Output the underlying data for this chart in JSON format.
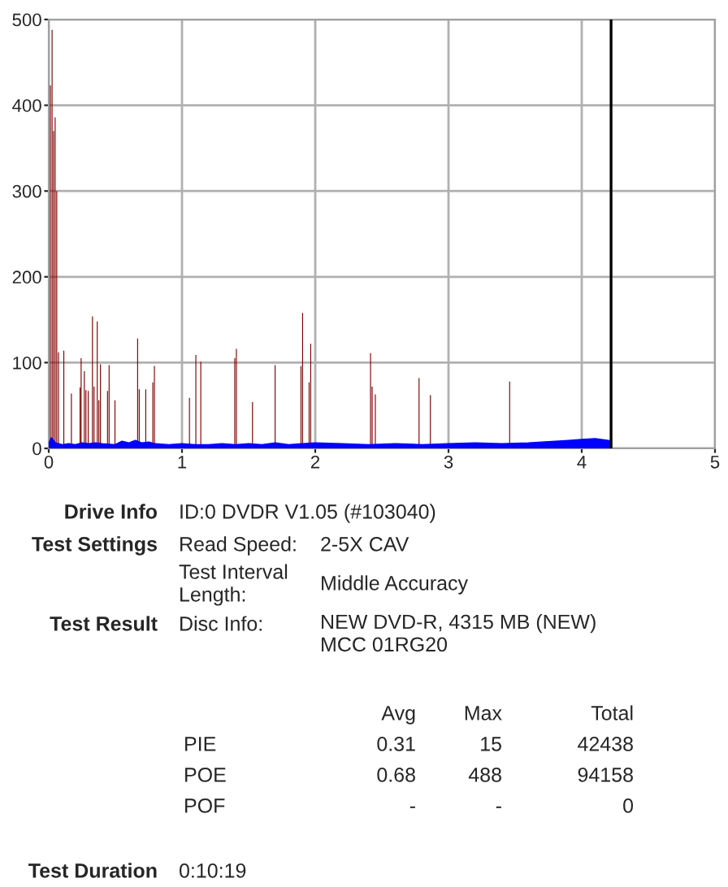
{
  "chart_data": {
    "type": "bar",
    "series": [
      {
        "color": "#800000",
        "x": [
          0.012,
          0.025,
          0.036,
          0.048,
          0.06,
          0.073,
          0.113,
          0.17,
          0.235,
          0.243,
          0.267,
          0.279,
          0.296,
          0.328,
          0.34,
          0.364,
          0.376,
          0.388,
          0.441,
          0.453,
          0.497,
          0.667,
          0.679,
          0.728,
          0.781,
          0.793,
          1.056,
          1.104,
          1.141,
          1.396,
          1.408,
          1.529,
          1.699,
          1.893,
          1.905,
          1.954,
          1.966,
          2.415,
          2.427,
          2.451,
          2.779,
          2.864,
          3.459
        ],
        "values": [
          423,
          488,
          370,
          386,
          300,
          112,
          114,
          64,
          71,
          105,
          90,
          68,
          67,
          154,
          72,
          148,
          56,
          98,
          67,
          97,
          56,
          128,
          69,
          69,
          77,
          96,
          59,
          109,
          101,
          105,
          116,
          54,
          97,
          96,
          158,
          77,
          122,
          111,
          72,
          63,
          82,
          62,
          78
        ]
      },
      {
        "type": "area",
        "color": "#0000ff",
        "x": [
          0.0,
          0.02,
          0.05,
          0.1,
          0.15,
          0.2,
          0.25,
          0.3,
          0.35,
          0.4,
          0.5,
          0.55,
          0.6,
          0.65,
          0.7,
          0.75,
          0.8,
          0.9,
          1.0,
          1.1,
          1.2,
          1.3,
          1.4,
          1.5,
          1.6,
          1.7,
          1.8,
          1.9,
          2.0,
          2.2,
          2.4,
          2.6,
          2.8,
          3.0,
          3.2,
          3.4,
          3.6,
          3.7,
          3.8,
          3.9,
          4.0,
          4.1,
          4.2,
          4.22
        ],
        "values": [
          5,
          12,
          6,
          4,
          5,
          4,
          6,
          5,
          6,
          5,
          4,
          8,
          6,
          9,
          6,
          7,
          5,
          4,
          5,
          4,
          4,
          5,
          4,
          5,
          4,
          6,
          4,
          5,
          6,
          5,
          4,
          5,
          4,
          5,
          6,
          5,
          6,
          7,
          8,
          9,
          10,
          11,
          9,
          8
        ]
      }
    ],
    "xlim": [
      0,
      5
    ],
    "xticks": [
      0,
      1,
      2,
      3,
      4,
      5
    ],
    "ylim": [
      0,
      500
    ],
    "yticks": [
      0,
      100,
      200,
      300,
      400,
      500
    ],
    "grid": true,
    "ref_lines": [
      {
        "axis": "x",
        "value": 4.22,
        "color": "#000000"
      }
    ],
    "annotations": [
      "Drive Info",
      "ID:0 DVDR V1.05 (#103040)",
      "Test Settings",
      "Read Speed:",
      "2-5X CAV",
      "Test Interval\nLength:",
      "Middle Accuracy",
      "Test Result",
      "Disc Info:",
      "NEW DVD-R, 4315 MB (NEW)\nMCC 01RG20",
      "Avg",
      "Max",
      "Total",
      "PIE",
      "0.31",
      "15",
      "42438",
      "POE",
      "0.68",
      "488",
      "94158",
      "POF",
      "-",
      "-",
      "0",
      "Test Duration",
      "0:10:19"
    ]
  }
}
